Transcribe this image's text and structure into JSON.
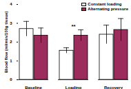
{
  "chart_data": {
    "type": "bar",
    "categories": [
      "Baseline",
      "Loading",
      "Recovery"
    ],
    "series": [
      {
        "name": "Constant loading",
        "color": "#ffffff",
        "values": [
          2.7,
          1.55,
          2.4
        ],
        "errors": [
          0.4,
          0.15,
          0.5
        ]
      },
      {
        "name": "Alternating pressure",
        "color": "#9b2c5c",
        "values": [
          2.35,
          2.35,
          2.65
        ],
        "errors": [
          0.4,
          0.3,
          0.6
        ]
      }
    ],
    "ylabel": "Blood flow (ml/min/100g tissue)",
    "ylim": [
      0,
      4
    ],
    "yticks": [
      0,
      1,
      2,
      3,
      4
    ],
    "legend": "top-right",
    "annotations": [
      {
        "text": "**",
        "category": "Loading"
      }
    ]
  }
}
